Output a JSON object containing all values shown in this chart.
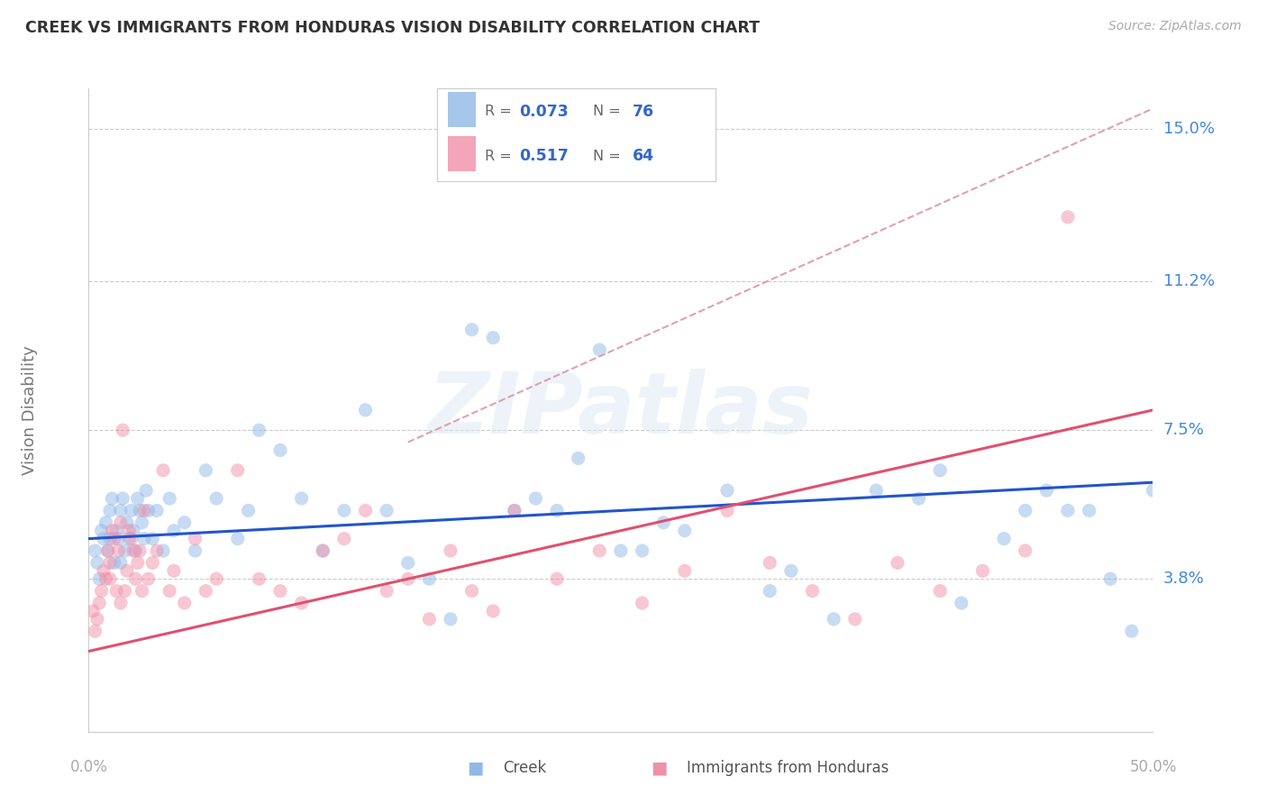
{
  "title": "CREEK VS IMMIGRANTS FROM HONDURAS VISION DISABILITY CORRELATION CHART",
  "source": "Source: ZipAtlas.com",
  "ylabel": "Vision Disability",
  "ytick_labels": [
    "3.8%",
    "7.5%",
    "11.2%",
    "15.0%"
  ],
  "ytick_values": [
    3.8,
    7.5,
    11.2,
    15.0
  ],
  "xlim": [
    0.0,
    50.0
  ],
  "ylim": [
    0.0,
    16.0
  ],
  "creek_color": "#90b8e8",
  "honduras_color": "#f090a8",
  "creek_line_color": "#2255cc",
  "honduras_line_color": "#e05070",
  "dashed_line_color": "#e0a0b0",
  "watermark_text": "ZIPatlas",
  "legend_R1": "0.073",
  "legend_N1": "76",
  "legend_R2": "0.517",
  "legend_N2": "64",
  "creek_x": [
    0.3,
    0.4,
    0.5,
    0.6,
    0.7,
    0.8,
    0.9,
    1.0,
    1.0,
    1.1,
    1.2,
    1.3,
    1.4,
    1.5,
    1.5,
    1.6,
    1.7,
    1.8,
    1.9,
    2.0,
    2.1,
    2.2,
    2.3,
    2.4,
    2.5,
    2.6,
    2.7,
    2.8,
    3.0,
    3.2,
    3.5,
    3.8,
    4.0,
    4.5,
    5.0,
    5.5,
    6.0,
    7.0,
    7.5,
    8.0,
    9.0,
    10.0,
    11.0,
    12.0,
    13.0,
    14.0,
    15.0,
    16.0,
    17.0,
    18.0,
    19.0,
    20.0,
    21.0,
    22.0,
    23.0,
    24.0,
    25.0,
    27.0,
    28.0,
    30.0,
    33.0,
    35.0,
    37.0,
    39.0,
    40.0,
    43.0,
    44.0,
    45.0,
    46.0,
    47.0,
    48.0,
    49.0,
    50.0,
    32.0,
    26.0,
    41.0
  ],
  "creek_y": [
    4.5,
    4.2,
    3.8,
    5.0,
    4.8,
    5.2,
    4.5,
    5.5,
    4.8,
    5.8,
    4.2,
    5.0,
    4.8,
    5.5,
    4.2,
    5.8,
    4.5,
    5.2,
    4.8,
    5.5,
    5.0,
    4.5,
    5.8,
    5.5,
    5.2,
    4.8,
    6.0,
    5.5,
    4.8,
    5.5,
    4.5,
    5.8,
    5.0,
    5.2,
    4.5,
    6.5,
    5.8,
    4.8,
    5.5,
    7.5,
    7.0,
    5.8,
    4.5,
    5.5,
    8.0,
    5.5,
    4.2,
    3.8,
    2.8,
    10.0,
    9.8,
    5.5,
    5.8,
    5.5,
    6.8,
    9.5,
    4.5,
    5.2,
    5.0,
    6.0,
    4.0,
    2.8,
    6.0,
    5.8,
    6.5,
    4.8,
    5.5,
    6.0,
    5.5,
    5.5,
    3.8,
    2.5,
    6.0,
    3.5,
    4.5,
    3.2
  ],
  "honduras_x": [
    0.2,
    0.3,
    0.4,
    0.5,
    0.6,
    0.7,
    0.8,
    0.9,
    1.0,
    1.0,
    1.1,
    1.2,
    1.3,
    1.4,
    1.5,
    1.5,
    1.6,
    1.7,
    1.8,
    1.9,
    2.0,
    2.1,
    2.2,
    2.3,
    2.4,
    2.5,
    2.6,
    2.8,
    3.0,
    3.2,
    3.5,
    3.8,
    4.0,
    4.5,
    5.0,
    5.5,
    6.0,
    7.0,
    8.0,
    9.0,
    10.0,
    11.0,
    12.0,
    13.0,
    14.0,
    15.0,
    16.0,
    17.0,
    18.0,
    19.0,
    20.0,
    22.0,
    24.0,
    26.0,
    28.0,
    30.0,
    32.0,
    34.0,
    36.0,
    38.0,
    40.0,
    42.0,
    44.0,
    46.0
  ],
  "honduras_y": [
    3.0,
    2.5,
    2.8,
    3.2,
    3.5,
    4.0,
    3.8,
    4.5,
    4.2,
    3.8,
    5.0,
    4.8,
    3.5,
    4.5,
    5.2,
    3.2,
    7.5,
    3.5,
    4.0,
    5.0,
    4.8,
    4.5,
    3.8,
    4.2,
    4.5,
    3.5,
    5.5,
    3.8,
    4.2,
    4.5,
    6.5,
    3.5,
    4.0,
    3.2,
    4.8,
    3.5,
    3.8,
    6.5,
    3.8,
    3.5,
    3.2,
    4.5,
    4.8,
    5.5,
    3.5,
    3.8,
    2.8,
    4.5,
    3.5,
    3.0,
    5.5,
    3.8,
    4.5,
    3.2,
    4.0,
    5.5,
    4.2,
    3.5,
    2.8,
    4.2,
    3.5,
    4.0,
    4.5,
    12.8
  ],
  "creek_trend_start_x": 0.0,
  "creek_trend_end_x": 50.0,
  "creek_trend_start_y": 4.8,
  "creek_trend_end_y": 6.2,
  "honduras_trend_start_x": 0.0,
  "honduras_trend_end_x": 50.0,
  "honduras_trend_start_y": 2.0,
  "honduras_trend_end_y": 8.0,
  "dashed_start_x": 15.0,
  "dashed_start_y": 7.2,
  "dashed_end_x": 50.0,
  "dashed_end_y": 15.5
}
